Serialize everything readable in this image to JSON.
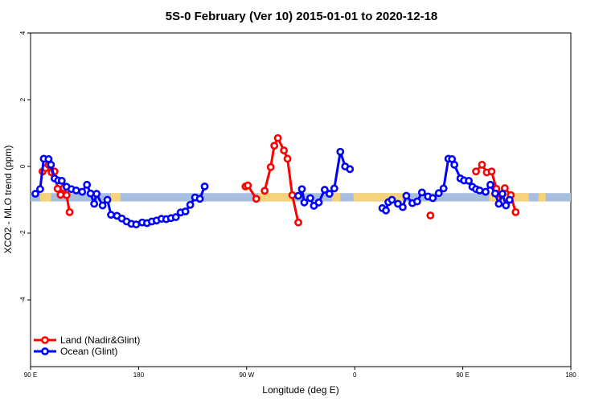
{
  "chart_data": {
    "type": "line",
    "title": "5S-0 February (Ver 10)   2015-01-01 to 2020-12-18",
    "xlabel": "Longitude (deg E)",
    "ylabel": "XCO2 - MLO trend (ppm)",
    "xlim": [
      90,
      540
    ],
    "ylim": [
      -6,
      4
    ],
    "x_ticks": [
      {
        "value": 90,
        "label": "90 E"
      },
      {
        "value": 180,
        "label": "180"
      },
      {
        "value": 270,
        "label": "90 W"
      },
      {
        "value": 360,
        "label": "0"
      },
      {
        "value": 450,
        "label": "90 E"
      },
      {
        "value": 540,
        "label": "180"
      }
    ],
    "y_ticks": [
      {
        "value": -4,
        "label": "-4"
      },
      {
        "value": -2,
        "label": "-2"
      },
      {
        "value": 0,
        "label": "0"
      },
      {
        "value": 2,
        "label": "2"
      },
      {
        "value": 4,
        "label": "4"
      }
    ],
    "band": {
      "y_range": [
        -1.05,
        -0.8
      ]
    },
    "land_segments": [
      [
        98,
        107
      ],
      [
        157,
        165
      ],
      [
        280,
        309
      ],
      [
        341,
        348
      ],
      [
        359,
        400
      ],
      [
        472,
        482
      ],
      [
        482,
        505
      ],
      [
        513,
        519
      ]
    ],
    "colors": {
      "band_ocean": "#a8bede",
      "band_land": "#f5d27c"
    },
    "series": [
      {
        "name": "Land (Nadir&Glint)",
        "color": "#ff0000",
        "segments": [
          [
            [
              100,
              -0.15
            ],
            [
              102.5,
              -0.05
            ],
            [
              105,
              0.05
            ],
            [
              107.5,
              -0.18
            ],
            [
              110,
              -0.15
            ],
            [
              112.5,
              -0.67
            ],
            [
              115,
              -0.85
            ],
            [
              117.5,
              -0.65
            ],
            [
              120,
              -0.86
            ],
            [
              122.5,
              -1.37
            ]
          ],
          [
            [
              269,
              -0.6
            ],
            [
              271,
              -0.57
            ],
            [
              278,
              -0.97
            ]
          ],
          [
            [
              285,
              -0.73
            ],
            [
              290,
              -0.02
            ],
            [
              293,
              0.62
            ],
            [
              296,
              0.85
            ],
            [
              301,
              0.48
            ],
            [
              304,
              0.23
            ],
            [
              308,
              -0.86
            ],
            [
              313,
              -1.68
            ]
          ],
          [
            [
              423,
              -1.47
            ]
          ],
          [
            [
              461,
              -0.15
            ],
            [
              466,
              0.05
            ],
            [
              470,
              -0.18
            ],
            [
              474,
              -0.15
            ],
            [
              478,
              -0.67
            ],
            [
              482,
              -0.85
            ],
            [
              485,
              -0.65
            ],
            [
              490,
              -0.86
            ],
            [
              494,
              -1.37
            ]
          ]
        ]
      },
      {
        "name": "Ocean (Glint)",
        "color": "#0000ff",
        "segments": [
          [
            [
              94,
              -0.82
            ],
            [
              98,
              -0.68
            ],
            [
              101,
              0.23
            ],
            [
              105,
              0.22
            ],
            [
              107,
              0.05
            ],
            [
              110,
              -0.36
            ],
            [
              113,
              -0.42
            ],
            [
              116,
              -0.43
            ],
            [
              120,
              -0.61
            ],
            [
              124,
              -0.68
            ],
            [
              128,
              -0.72
            ],
            [
              133,
              -0.76
            ],
            [
              137,
              -0.55
            ],
            [
              140,
              -0.81
            ],
            [
              143,
              -1.12
            ],
            [
              145,
              -0.82
            ],
            [
              150,
              -1.17
            ],
            [
              154,
              -1.0
            ],
            [
              157,
              -1.45
            ],
            [
              162,
              -1.48
            ],
            [
              166,
              -1.56
            ],
            [
              170,
              -1.65
            ],
            [
              174,
              -1.72
            ],
            [
              178,
              -1.74
            ],
            [
              183,
              -1.68
            ],
            [
              187,
              -1.7
            ],
            [
              191,
              -1.65
            ],
            [
              195,
              -1.62
            ],
            [
              199,
              -1.57
            ],
            [
              203,
              -1.58
            ],
            [
              207,
              -1.55
            ],
            [
              211,
              -1.52
            ],
            [
              215,
              -1.38
            ],
            [
              219,
              -1.35
            ],
            [
              223,
              -1.15
            ],
            [
              227,
              -0.93
            ],
            [
              231,
              -0.97
            ],
            [
              235,
              -0.6
            ]
          ],
          [
            [
              313,
              -0.88
            ],
            [
              316,
              -0.68
            ],
            [
              318,
              -1.08
            ],
            [
              323,
              -0.95
            ],
            [
              326,
              -1.18
            ],
            [
              330,
              -1.08
            ],
            [
              335,
              -0.7
            ],
            [
              339,
              -0.82
            ],
            [
              343,
              -0.66
            ],
            [
              348,
              0.44
            ],
            [
              352,
              0.0
            ],
            [
              356,
              -0.08
            ]
          ],
          [
            [
              383,
              -1.25
            ],
            [
              386,
              -1.32
            ],
            [
              388,
              -1.07
            ],
            [
              391,
              -1.0
            ],
            [
              396,
              -1.12
            ],
            [
              400,
              -1.22
            ],
            [
              403,
              -0.88
            ],
            [
              408,
              -1.1
            ],
            [
              412,
              -1.05
            ],
            [
              416,
              -0.78
            ],
            [
              421,
              -0.9
            ],
            [
              425,
              -0.95
            ],
            [
              430,
              -0.8
            ],
            [
              434,
              -0.66
            ],
            [
              438,
              0.23
            ],
            [
              441,
              0.22
            ],
            [
              443,
              0.05
            ],
            [
              448,
              -0.36
            ],
            [
              451,
              -0.42
            ],
            [
              455,
              -0.43
            ],
            [
              458,
              -0.61
            ],
            [
              461,
              -0.68
            ],
            [
              464,
              -0.72
            ],
            [
              469,
              -0.76
            ],
            [
              473,
              -0.55
            ],
            [
              477,
              -0.81
            ],
            [
              480,
              -1.12
            ],
            [
              483,
              -0.82
            ],
            [
              486,
              -1.17
            ],
            [
              489,
              -1.0
            ]
          ]
        ]
      }
    ],
    "legend": {
      "position": "bottom-left"
    }
  }
}
